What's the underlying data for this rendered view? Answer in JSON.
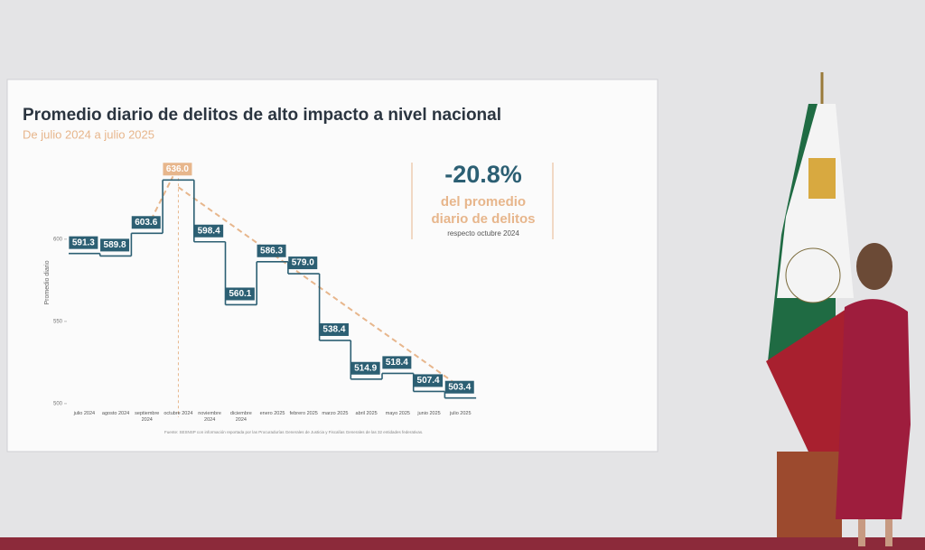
{
  "chart_data": {
    "type": "step",
    "title": "Promedio diario de delitos de alto impacto a nivel nacional",
    "subtitle": "De julio 2024 a julio 2025",
    "y_label": "Promedio diario",
    "categories": [
      "julio 2024",
      "agosto 2024",
      "septiembre 2024",
      "octubre 2024",
      "noviembre 2024",
      "diciembre 2024",
      "enero 2025",
      "febrero 2025",
      "marzo 2025",
      "abril 2025",
      "mayo 2025",
      "junio 2025",
      "julio 2025"
    ],
    "values": [
      591.3,
      589.8,
      603.6,
      636.0,
      598.4,
      560.1,
      586.3,
      579.0,
      538.4,
      514.9,
      518.4,
      507.4,
      503.4
    ],
    "value_labels": [
      "591.3",
      "589.8",
      "603.6",
      "636.0",
      "598.4",
      "560.1",
      "586.3",
      "579.0",
      "538.4",
      "514.9",
      "518.4",
      "507.4",
      "503.4"
    ],
    "color": "#2c5f73",
    "highlight_color": "#e7b68c",
    "ylim": [
      495,
      640
    ],
    "yticks": [
      500,
      550,
      600
    ],
    "annotation": {
      "value": "-20.8%",
      "lines": [
        "del promedio",
        "diario de delitos"
      ],
      "note": "respecto octubre 2024"
    },
    "source": "Fuente: SESNSP con información reportada por las Procuradurías Generales de Justicia y Fiscalías Generales de las 32 entidades federativas."
  }
}
